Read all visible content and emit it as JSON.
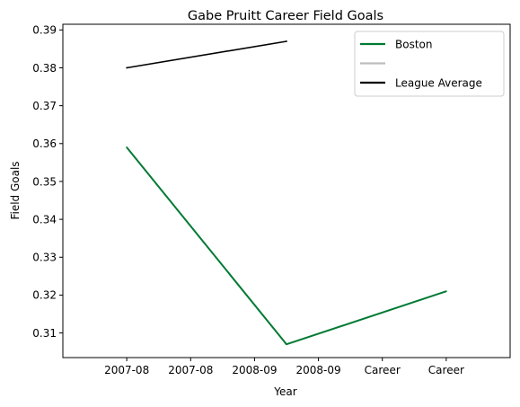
{
  "chart_data": {
    "type": "line",
    "title": "Gabe Pruitt Career Field Goals",
    "xlabel": "Year",
    "ylabel": "Field Goals",
    "categories": [
      "2007-08",
      "2007-08",
      "2008-09",
      "2008-09",
      "Career",
      "Career"
    ],
    "ylim": [
      0.3035,
      0.3915
    ],
    "yticks": [
      0.31,
      0.32,
      0.33,
      0.34,
      0.35,
      0.36,
      0.37,
      0.38,
      0.39
    ],
    "grid": false,
    "legend_position": "top-right",
    "series": [
      {
        "name": "Boston",
        "color": "#007a33",
        "points": [
          {
            "x": 0,
            "y": 0.359
          },
          {
            "x": 2.5,
            "y": 0.307
          },
          {
            "x": 5,
            "y": 0.321
          }
        ]
      },
      {
        "name": "",
        "color": "#bebebe",
        "points": []
      },
      {
        "name": "League Average",
        "color": "#000000",
        "points": [
          {
            "x": 0,
            "y": 0.38
          },
          {
            "x": 2.5,
            "y": 0.387
          }
        ]
      }
    ]
  }
}
